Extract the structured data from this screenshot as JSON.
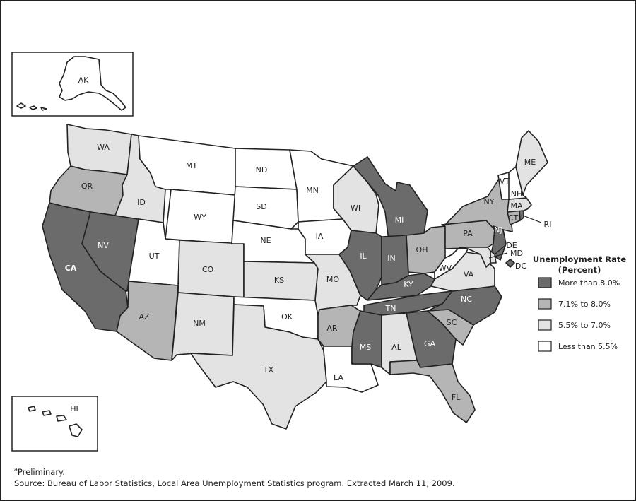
{
  "legend": {
    "title_line1": "Unemployment Rate",
    "title_line2": "(Percent)",
    "items": [
      {
        "label": "More than 8.0%",
        "color": "#6b6b6b"
      },
      {
        "label": "7.1% to 8.0%",
        "color": "#b5b5b5"
      },
      {
        "label": "5.5% to 7.0%",
        "color": "#e3e3e3"
      },
      {
        "label": "Less than 5.5%",
        "color": "#ffffff"
      }
    ]
  },
  "states": {
    "AK": {
      "label": "AK",
      "class": 3
    },
    "HI": {
      "label": "HI",
      "class": 3
    },
    "WA": {
      "label": "WA",
      "class": 2
    },
    "OR": {
      "label": "OR",
      "class": 1
    },
    "CA": {
      "label": "CA",
      "class": 0
    },
    "NV": {
      "label": "NV",
      "class": 0
    },
    "ID": {
      "label": "ID",
      "class": 2
    },
    "MT": {
      "label": "MT",
      "class": 3
    },
    "WY": {
      "label": "WY",
      "class": 3
    },
    "UT": {
      "label": "UT",
      "class": 3
    },
    "AZ": {
      "label": "AZ",
      "class": 1
    },
    "CO": {
      "label": "CO",
      "class": 2
    },
    "NM": {
      "label": "NM",
      "class": 2
    },
    "ND": {
      "label": "ND",
      "class": 3
    },
    "SD": {
      "label": "SD",
      "class": 3
    },
    "NE": {
      "label": "NE",
      "class": 3
    },
    "KS": {
      "label": "KS",
      "class": 2
    },
    "OK": {
      "label": "OK",
      "class": 3
    },
    "TX": {
      "label": "TX",
      "class": 2
    },
    "MN": {
      "label": "MN",
      "class": 3
    },
    "IA": {
      "label": "IA",
      "class": 3
    },
    "MO": {
      "label": "MO",
      "class": 2
    },
    "AR": {
      "label": "AR",
      "class": 1
    },
    "LA": {
      "label": "LA",
      "class": 3
    },
    "WI": {
      "label": "WI",
      "class": 2
    },
    "IL": {
      "label": "IL",
      "class": 0
    },
    "MI": {
      "label": "MI",
      "class": 0
    },
    "IN": {
      "label": "IN",
      "class": 0
    },
    "OH": {
      "label": "OH",
      "class": 1
    },
    "KY": {
      "label": "KY",
      "class": 0
    },
    "TN": {
      "label": "TN",
      "class": 0
    },
    "MS": {
      "label": "MS",
      "class": 0
    },
    "AL": {
      "label": "AL",
      "class": 2
    },
    "GA": {
      "label": "GA",
      "class": 0
    },
    "FL": {
      "label": "FL",
      "class": 1
    },
    "SC": {
      "label": "SC",
      "class": 1
    },
    "NC": {
      "label": "NC",
      "class": 0
    },
    "VA": {
      "label": "VA",
      "class": 2
    },
    "WV": {
      "label": "WV",
      "class": 3
    },
    "PA": {
      "label": "PA",
      "class": 1
    },
    "NY": {
      "label": "NY",
      "class": 1
    },
    "NJ": {
      "label": "NJ",
      "class": 0
    },
    "DE": {
      "label": "DE",
      "class": 2
    },
    "MD": {
      "label": "MD",
      "class": 2
    },
    "DC": {
      "label": "DC",
      "class": 0
    },
    "CT": {
      "label": "CT",
      "class": 1
    },
    "RI": {
      "label": "RI",
      "class": 0
    },
    "MA": {
      "label": "MA",
      "class": 2
    },
    "VT": {
      "label": "VT",
      "class": 3
    },
    "NH": {
      "label": "NH",
      "class": 3
    },
    "ME": {
      "label": "ME",
      "class": 2
    }
  },
  "footnote": {
    "marker": "a",
    "note": "Preliminary.",
    "source": "Source: Bureau of Labor Statistics, Local Area Unemployment Statistics program. Extracted March 11, 2009."
  }
}
